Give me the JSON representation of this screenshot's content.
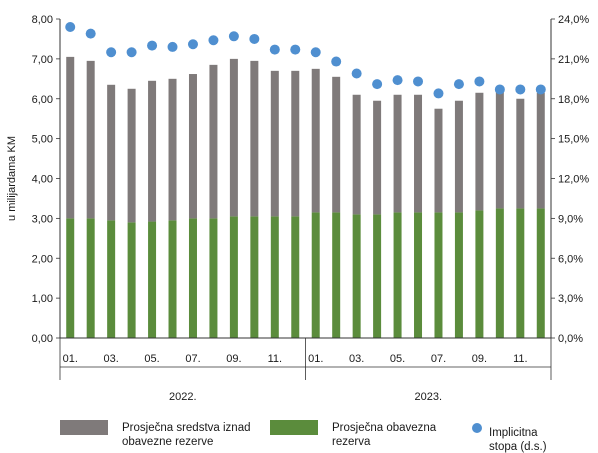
{
  "chart_data": {
    "type": "bar",
    "stacked": true,
    "months": [
      "01.",
      "",
      "03.",
      "",
      "05.",
      "",
      "07.",
      "",
      "09.",
      "",
      "11.",
      "",
      "01.",
      "",
      "03.",
      "",
      "05.",
      "",
      "07.",
      "",
      "09.",
      "",
      "11.",
      ""
    ],
    "years": [
      "2022.",
      "2023."
    ],
    "ylabel": "u milijardama KM",
    "ylim": [
      0,
      8
    ],
    "ylim_right": [
      0,
      24
    ],
    "y_ticks": [
      "0,00",
      "1,00",
      "2,00",
      "3,00",
      "4,00",
      "5,00",
      "6,00",
      "7,00",
      "8,00"
    ],
    "y_ticks_right": [
      "0,0%",
      "3,0%",
      "6,0%",
      "9,0%",
      "12,0%",
      "15,0%",
      "18,0%",
      "21,0%",
      "24,0%"
    ],
    "series": [
      {
        "name": "Prosječna obavezna rezerva",
        "color": "#5b8c3c",
        "axis": "left",
        "values": [
          3.0,
          3.0,
          2.95,
          2.9,
          2.92,
          2.95,
          3.0,
          3.0,
          3.05,
          3.05,
          3.05,
          3.05,
          3.15,
          3.15,
          3.1,
          3.1,
          3.15,
          3.15,
          3.15,
          3.15,
          3.2,
          3.25,
          3.25,
          3.25
        ]
      },
      {
        "name": "Prosječna sredstva iznad obavezne rezerve",
        "color": "#7f7a7a",
        "axis": "left",
        "values": [
          4.05,
          3.95,
          3.4,
          3.35,
          3.53,
          3.55,
          3.62,
          3.85,
          3.95,
          3.9,
          3.65,
          3.65,
          3.6,
          3.4,
          3.0,
          2.85,
          2.95,
          2.95,
          2.6,
          2.8,
          2.95,
          2.95,
          2.75,
          2.9
        ]
      },
      {
        "name": "Implicitna stopa (d.s.)",
        "color": "#4f8fd0",
        "type": "scatter",
        "axis": "right",
        "values": [
          23.4,
          22.9,
          21.5,
          21.5,
          22.0,
          21.9,
          22.1,
          22.4,
          22.7,
          22.5,
          21.7,
          21.7,
          21.5,
          20.8,
          19.9,
          19.1,
          19.4,
          19.3,
          18.4,
          19.1,
          19.3,
          18.7,
          18.7,
          18.7
        ]
      }
    ],
    "legend": [
      {
        "label": "Prosječna sredstva iznad obavezne rezerve",
        "lines": [
          "Prosječna sredstva iznad",
          "obavezne rezerve"
        ],
        "color": "#7f7a7a",
        "marker": "rect"
      },
      {
        "label": "Prosječna obavezna rezerva",
        "lines": [
          "Prosječna obavezna",
          "rezerva"
        ],
        "color": "#5b8c3c",
        "marker": "rect"
      },
      {
        "label": "Implicitna stopa (d.s.)",
        "lines": [
          "Implicitna",
          "stopa (d.s.)"
        ],
        "color": "#4f8fd0",
        "marker": "circle"
      }
    ],
    "legend_position": "bottom",
    "grid": false
  }
}
